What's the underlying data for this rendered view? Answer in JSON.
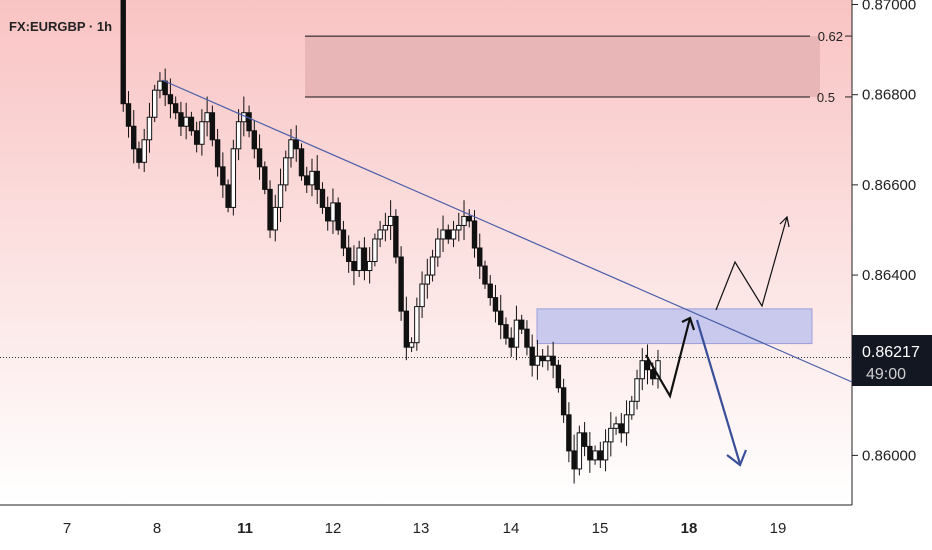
{
  "chart_data": {
    "type": "candlestick",
    "symbol_label": "FX:EURGBP · 1h",
    "y_axis": {
      "range": [
        0.8589,
        0.8701
      ],
      "ticks": [
        "0.87000",
        "0.86800",
        "0.86600",
        "0.86400",
        "0.86000"
      ],
      "tick_values": [
        0.87,
        0.868,
        0.866,
        0.864,
        0.86
      ]
    },
    "x_axis": {
      "ticks": [
        {
          "label": "7",
          "bold": false
        },
        {
          "label": "8",
          "bold": false
        },
        {
          "label": "11",
          "bold": true
        },
        {
          "label": "12",
          "bold": false
        },
        {
          "label": "13",
          "bold": false
        },
        {
          "label": "14",
          "bold": false
        },
        {
          "label": "15",
          "bold": false
        },
        {
          "label": "18",
          "bold": true
        },
        {
          "label": "19",
          "bold": false
        }
      ]
    },
    "current_price": {
      "value": 0.86217,
      "label": "0.86217",
      "countdown": "49:00",
      "color": "#131722"
    },
    "fib_zone": {
      "levels": [
        {
          "label": "0.62",
          "price": 0.8693
        },
        {
          "label": "0.5",
          "price": 0.86795
        }
      ],
      "fill": "#e8b6b6"
    },
    "demand_zone": {
      "top": 0.86325,
      "bottom": 0.86248,
      "fill": "#c9c9ee",
      "stroke": "#9e9edb"
    },
    "trendline": {
      "color": "#4a5fa8"
    },
    "projection_paths": {
      "bull_color": "#111111",
      "bear_color": "#3a4f99"
    },
    "background": {
      "top": "#f9c3c3",
      "bottom": "#ffffff"
    },
    "candle_color": "#111111",
    "price_series": [
      0.8701,
      0.8678,
      0.8673,
      0.8668,
      0.8665,
      0.867,
      0.8675,
      0.8681,
      0.8683,
      0.868,
      0.8678,
      0.8676,
      0.8673,
      0.8675,
      0.8672,
      0.8669,
      0.8674,
      0.8676,
      0.867,
      0.8664,
      0.866,
      0.8655,
      0.8668,
      0.8674,
      0.8676,
      0.8672,
      0.8668,
      0.8664,
      0.8659,
      0.865,
      0.8655,
      0.866,
      0.8666,
      0.867,
      0.8668,
      0.8662,
      0.866,
      0.8663,
      0.8659,
      0.8655,
      0.8652,
      0.8656,
      0.865,
      0.8646,
      0.8643,
      0.8641,
      0.8646,
      0.8641,
      0.8643,
      0.8648,
      0.865,
      0.8651,
      0.8653,
      0.8644,
      0.8632,
      0.8624,
      0.8625,
      0.8633,
      0.8638,
      0.864,
      0.8644,
      0.8648,
      0.865,
      0.8648,
      0.865,
      0.8651,
      0.8653,
      0.8652,
      0.8646,
      0.8642,
      0.8638,
      0.8635,
      0.8632,
      0.8629,
      0.8626,
      0.8624,
      0.863,
      0.8628,
      0.8624,
      0.862,
      0.8622,
      0.8621,
      0.8622,
      0.862,
      0.8615,
      0.8609,
      0.8601,
      0.8597,
      0.8605,
      0.8602,
      0.8599,
      0.8601,
      0.8599,
      0.8603,
      0.8606,
      0.8607,
      0.8605,
      0.8609,
      0.8612,
      0.8617,
      0.8621,
      0.8619,
      0.8617,
      0.8621
    ]
  }
}
